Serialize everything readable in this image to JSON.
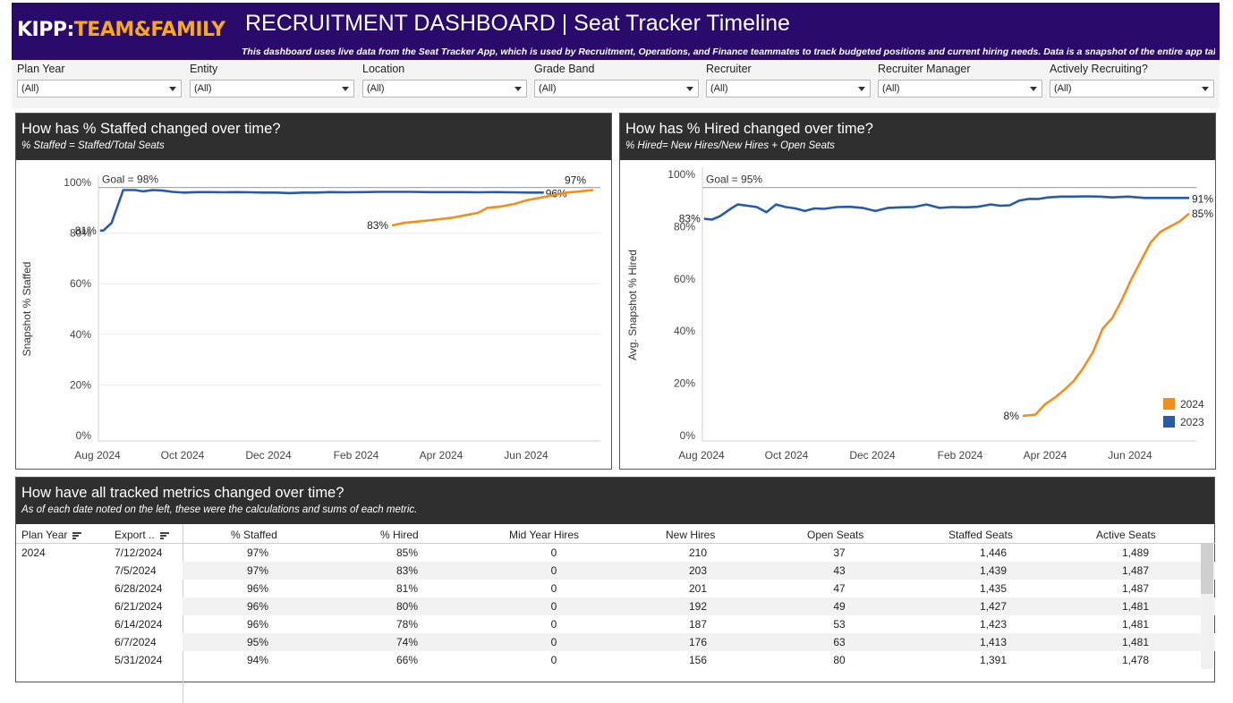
{
  "header": {
    "logo_a": "KIPP:",
    "logo_b": "TEAM&FAMILY",
    "title": "RECRUITMENT DASHBOARD | Seat Tracker Timeline",
    "subtitle": "This dashboard uses live data from the Seat Tracker App, which is used by Recruitment, Operations, and Finance teammates to track budgeted positions and current hiring needs. Data is a snapshot of the entire app taken"
  },
  "filters": [
    {
      "label": "Plan Year",
      "value": "(All)"
    },
    {
      "label": "Entity",
      "value": "(All)"
    },
    {
      "label": "Location",
      "value": "(All)"
    },
    {
      "label": "Grade Band",
      "value": "(All)"
    },
    {
      "label": "Recruiter",
      "value": "(All)"
    },
    {
      "label": "Recruiter Manager",
      "value": "(All)"
    },
    {
      "label": "Actively Recruiting?",
      "value": "(All)"
    }
  ],
  "colors": {
    "y2024": "#f28e1c",
    "y2023": "#2a5aa5",
    "goal": "#aaaaaa"
  },
  "staffed_panel": {
    "title": "How has % Staffed changed over time?",
    "subtitle": "% Staffed = Staffed/Total Seats"
  },
  "hired_panel": {
    "title": "How has % Hired changed over time?",
    "subtitle": "% Hired= New Hires/New Hires + Open Seats"
  },
  "table_panel": {
    "title": "How have all tracked metrics changed over time?",
    "subtitle": "As of each date noted on the left, these were the calculations and sums of each metric.",
    "columns": [
      "Plan Year",
      "Export ..",
      "% Staffed",
      "% Hired",
      "Mid Year Hires",
      "New Hires",
      "Open Seats",
      "Staffed Seats",
      "Active Seats"
    ],
    "plan_year": "2024",
    "rows": [
      [
        "7/12/2024",
        "97%",
        "85%",
        "0",
        "210",
        "37",
        "1,446",
        "1,489"
      ],
      [
        "7/5/2024",
        "97%",
        "83%",
        "0",
        "203",
        "43",
        "1,439",
        "1,487"
      ],
      [
        "6/28/2024",
        "96%",
        "81%",
        "0",
        "201",
        "47",
        "1,435",
        "1,487"
      ],
      [
        "6/21/2024",
        "96%",
        "80%",
        "0",
        "192",
        "49",
        "1,427",
        "1,481"
      ],
      [
        "6/14/2024",
        "96%",
        "78%",
        "0",
        "187",
        "53",
        "1,423",
        "1,481"
      ],
      [
        "6/7/2024",
        "95%",
        "74%",
        "0",
        "176",
        "63",
        "1,413",
        "1,481"
      ],
      [
        "5/31/2024",
        "94%",
        "66%",
        "0",
        "156",
        "80",
        "1,391",
        "1,478"
      ]
    ]
  },
  "chart_data": [
    {
      "type": "line",
      "title": "How has % Staffed changed over time?",
      "subtitle": "% Staffed = Staffed/Total Seats",
      "ylabel": "Snapshot % Staffed",
      "xlabel": "",
      "x_ticks": [
        "Aug 2024",
        "Oct 2024",
        "Dec 2024",
        "Feb 2024",
        "Apr 2024",
        "Jun 2024"
      ],
      "y_ticks": [
        "0%",
        "20%",
        "40%",
        "60%",
        "80%",
        "100%"
      ],
      "ylim": [
        0,
        100
      ],
      "goal": {
        "label": "Goal = 98%",
        "value": 98
      },
      "grid": "horizontal",
      "series": [
        {
          "name": "2023",
          "start_label": "81%",
          "end_label": "96%",
          "points": [
            [
              1,
              81
            ],
            [
              3,
              81
            ],
            [
              8,
              84
            ],
            [
              15,
              97
            ],
            [
              22,
              97
            ],
            [
              27,
              96.5
            ],
            [
              33,
              97
            ],
            [
              39,
              96.8
            ],
            [
              45,
              96.3
            ],
            [
              52,
              96
            ],
            [
              60,
              96.2
            ],
            [
              68,
              96.2
            ],
            [
              76,
              96.1
            ],
            [
              84,
              96.2
            ],
            [
              92,
              96.1
            ],
            [
              100,
              96
            ],
            [
              108,
              96
            ],
            [
              116,
              95.8
            ],
            [
              124,
              96
            ],
            [
              132,
              96
            ],
            [
              140,
              96.2
            ],
            [
              150,
              96.1
            ],
            [
              160,
              96.2
            ],
            [
              170,
              96.3
            ],
            [
              180,
              96.3
            ],
            [
              190,
              96.3
            ],
            [
              200,
              96.2
            ],
            [
              210,
              96.2
            ],
            [
              220,
              96.2
            ],
            [
              230,
              96.1
            ],
            [
              240,
              96.2
            ],
            [
              250,
              96.1
            ],
            [
              262,
              96
            ],
            [
              270,
              96
            ]
          ]
        },
        {
          "name": "2024",
          "start_label": "83%",
          "end_label": "97%",
          "points": [
            [
              178,
              83
            ],
            [
              185,
              84
            ],
            [
              192,
              84.5
            ],
            [
              200,
              85
            ],
            [
              207,
              85.5
            ],
            [
              214,
              86
            ],
            [
              222,
              87
            ],
            [
              230,
              88
            ],
            [
              236,
              90
            ],
            [
              244,
              90.5
            ],
            [
              252,
              91.5
            ],
            [
              260,
              93
            ],
            [
              268,
              94
            ],
            [
              276,
              95
            ],
            [
              284,
              96
            ],
            [
              292,
              96.5
            ],
            [
              300,
              97
            ]
          ]
        }
      ]
    },
    {
      "type": "line",
      "title": "How has % Hired changed over time?",
      "subtitle": "% Hired= New Hires/New Hires + Open Seats",
      "ylabel": "Avg. Snapshot % Hired",
      "xlabel": "",
      "x_ticks": [
        "Aug 2024",
        "Oct 2024",
        "Dec 2024",
        "Feb 2024",
        "Apr 2024",
        "Jun 2024"
      ],
      "y_ticks": [
        "0%",
        "20%",
        "40%",
        "60%",
        "80%",
        "100%"
      ],
      "ylim": [
        0,
        100
      ],
      "goal": {
        "label": "Goal = 95%",
        "value": 95
      },
      "legend": {
        "position": "bottom-right",
        "entries": [
          {
            "name": "2024"
          },
          {
            "name": "2023"
          }
        ]
      },
      "series": [
        {
          "name": "2023",
          "start_label": "83%",
          "end_label": "91%",
          "points": [
            [
              1,
              83
            ],
            [
              6,
              82.7
            ],
            [
              11,
              84
            ],
            [
              18,
              87
            ],
            [
              22,
              88.5
            ],
            [
              28,
              88
            ],
            [
              34,
              87.5
            ],
            [
              40,
              85.5
            ],
            [
              46,
              88.5
            ],
            [
              52,
              87.5
            ],
            [
              58,
              87
            ],
            [
              64,
              86
            ],
            [
              70,
              87
            ],
            [
              76,
              86.8
            ],
            [
              84,
              87.5
            ],
            [
              92,
              87.6
            ],
            [
              100,
              87.2
            ],
            [
              108,
              86
            ],
            [
              116,
              87.2
            ],
            [
              124,
              87.4
            ],
            [
              132,
              87.5
            ],
            [
              140,
              88.5
            ],
            [
              148,
              87.2
            ],
            [
              156,
              87.5
            ],
            [
              164,
              87.4
            ],
            [
              172,
              87.6
            ],
            [
              180,
              88.5
            ],
            [
              186,
              88
            ],
            [
              192,
              88.2
            ],
            [
              198,
              90
            ],
            [
              204,
              90.6
            ],
            [
              210,
              90.6
            ],
            [
              216,
              91.2
            ],
            [
              224,
              91.5
            ],
            [
              232,
              91.5
            ],
            [
              240,
              91.6
            ],
            [
              248,
              91.5
            ],
            [
              256,
              91.2
            ],
            [
              266,
              91.5
            ],
            [
              276,
              91
            ],
            [
              286,
              91
            ],
            [
              296,
              91
            ],
            [
              304,
              91
            ]
          ]
        },
        {
          "name": "2024",
          "start_label": "8%",
          "end_label": "85%",
          "points": [
            [
              200,
              7.5
            ],
            [
              208,
              8
            ],
            [
              214,
              12
            ],
            [
              220,
              14.5
            ],
            [
              226,
              17.5
            ],
            [
              232,
              21
            ],
            [
              238,
              26
            ],
            [
              244,
              32
            ],
            [
              250,
              41
            ],
            [
              256,
              45
            ],
            [
              262,
              52
            ],
            [
              268,
              60
            ],
            [
              274,
              67
            ],
            [
              280,
              74
            ],
            [
              286,
              78
            ],
            [
              292,
              80
            ],
            [
              298,
              82
            ],
            [
              304,
              85
            ]
          ]
        }
      ]
    }
  ]
}
